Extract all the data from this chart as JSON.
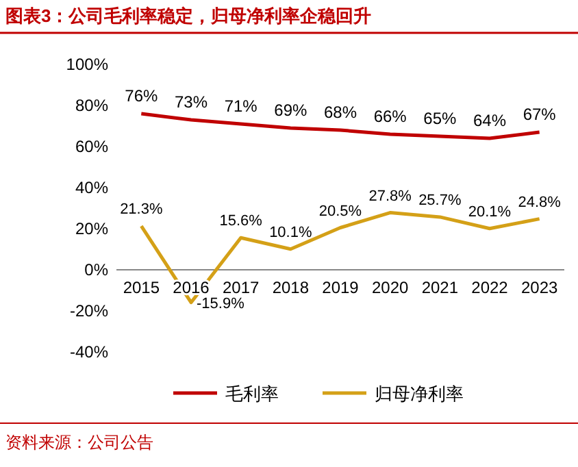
{
  "chart_data": {
    "type": "line",
    "title": "图表3：公司毛利率稳定，归母净利率企稳回升",
    "categories": [
      "2015",
      "2016",
      "2017",
      "2018",
      "2019",
      "2020",
      "2021",
      "2022",
      "2023"
    ],
    "series": [
      {
        "name": "毛利率",
        "color": "#c00000",
        "values": [
          76,
          73,
          71,
          69,
          68,
          66,
          65,
          64,
          67
        ],
        "value_labels": [
          "76%",
          "73%",
          "71%",
          "69%",
          "68%",
          "66%",
          "65%",
          "64%",
          "67%"
        ]
      },
      {
        "name": "归母净利率",
        "color": "#d4a017",
        "values": [
          21.3,
          -15.9,
          15.6,
          10.1,
          20.5,
          27.8,
          25.7,
          20.1,
          24.8
        ],
        "value_labels": [
          "21.3%",
          "-15.9%",
          "15.6%",
          "10.1%",
          "20.5%",
          "27.8%",
          "25.7%",
          "20.1%",
          "24.8%"
        ]
      }
    ],
    "ylim": [
      -40,
      100
    ],
    "yticks": [
      {
        "value": -40,
        "label": "-40%"
      },
      {
        "value": -20,
        "label": "-20%"
      },
      {
        "value": 0,
        "label": "0%"
      },
      {
        "value": 20,
        "label": "20%"
      },
      {
        "value": 40,
        "label": "40%"
      },
      {
        "value": 60,
        "label": "60%"
      },
      {
        "value": 80,
        "label": "80%"
      },
      {
        "value": 100,
        "label": "100%"
      }
    ],
    "legend": "bottom",
    "annotations": [
      "资料来源：公司公告"
    ]
  }
}
